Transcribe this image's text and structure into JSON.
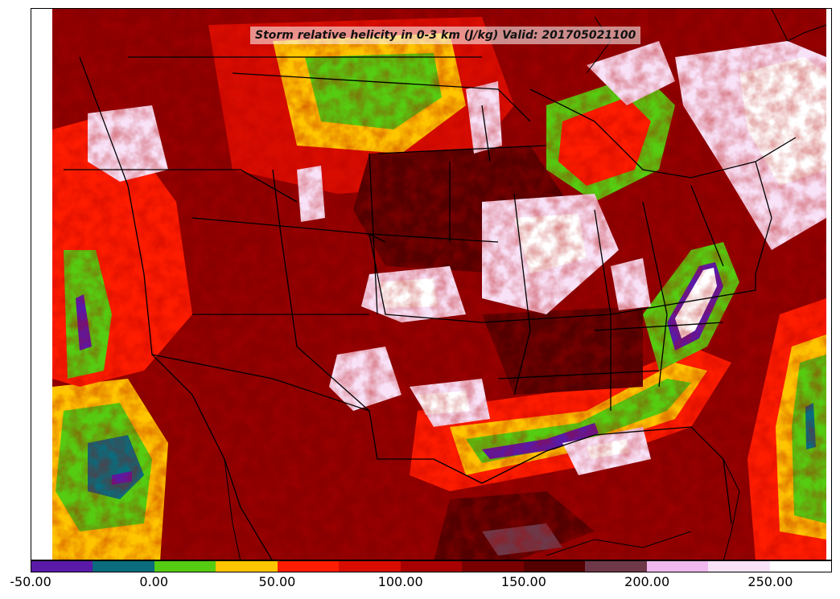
{
  "title": "Storm relative helicity in 0-3 km (J/kg) Valid: 201705021100",
  "colorbar": {
    "min": -50,
    "max": 275,
    "step": 25,
    "colors": [
      "#5a1aa8",
      "#0a6c7c",
      "#55cc11",
      "#ffc600",
      "#ff1d00",
      "#d80d00",
      "#a80000",
      "#7a0000",
      "#540000",
      "#6e3848",
      "#f0b8ee",
      "#f8e2f8",
      "#ffffff"
    ],
    "tick_labels": [
      "-50.00",
      "0.00",
      "50.00",
      "100.00",
      "150.00",
      "200.00",
      "250.00"
    ],
    "tick_values": [
      -50,
      0,
      50,
      100,
      150,
      200,
      250
    ]
  }
}
